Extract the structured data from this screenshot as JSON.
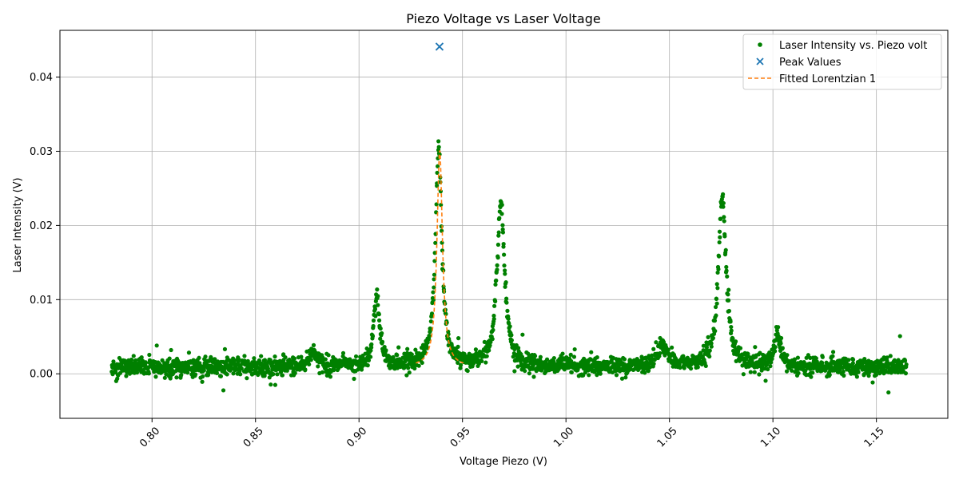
{
  "chart_data": {
    "type": "scatter",
    "title": "Piezo Voltage vs Laser Voltage",
    "xlabel": "Voltage Piezo (V)",
    "ylabel": "Laser Intensity (V)",
    "xlim": [
      0.7555,
      1.1845
    ],
    "ylim": [
      -0.006,
      0.0463
    ],
    "x_ticks": [
      0.8,
      0.85,
      0.9,
      0.95,
      1.0,
      1.05,
      1.1,
      1.15
    ],
    "x_tick_labels": [
      "0.80",
      "0.85",
      "0.90",
      "0.95",
      "1.00",
      "1.05",
      "1.10",
      "1.15"
    ],
    "y_ticks": [
      0.0,
      0.01,
      0.02,
      0.03,
      0.04
    ],
    "y_tick_labels": [
      "0.00",
      "0.01",
      "0.02",
      "0.03",
      "0.04"
    ],
    "grid": true,
    "legend_position": "top-right",
    "x_range": [
      0.7805,
      1.1645
    ],
    "peaks_for_scatter": [
      {
        "center": 0.9085,
        "height": 0.0095,
        "width": 0.0017
      },
      {
        "center": 0.9385,
        "height": 0.03,
        "width": 0.0018
      },
      {
        "center": 0.9685,
        "height": 0.022,
        "width": 0.0022
      },
      {
        "center": 1.0465,
        "height": 0.003,
        "width": 0.003
      },
      {
        "center": 1.0755,
        "height": 0.023,
        "width": 0.0022
      },
      {
        "center": 1.102,
        "height": 0.004,
        "width": 0.0018
      },
      {
        "center": 0.878,
        "height": 0.002,
        "width": 0.0025
      }
    ],
    "baseline": 0.0009,
    "series": [
      {
        "name": "Laser Intensity vs. Piezo volt",
        "marker": "dot",
        "color": "#008000",
        "description_points": "dense noisy scan"
      },
      {
        "name": "Peak Values",
        "marker": "x",
        "color": "#1f77b4",
        "points": [
          [
            0.9389,
            0.0441
          ]
        ]
      },
      {
        "name": "Fitted Lorentzian 1",
        "marker": "dashed-line",
        "color": "#ff7f0e",
        "fit": {
          "x0": 0.939,
          "amplitude": 0.0292,
          "gamma": 0.0016,
          "offset": 0.0009,
          "x_range": [
            0.9275,
            0.9505
          ]
        }
      }
    ],
    "legend": [
      "Laser Intensity vs. Piezo volt",
      "Peak Values",
      "Fitted Lorentzian 1"
    ]
  }
}
